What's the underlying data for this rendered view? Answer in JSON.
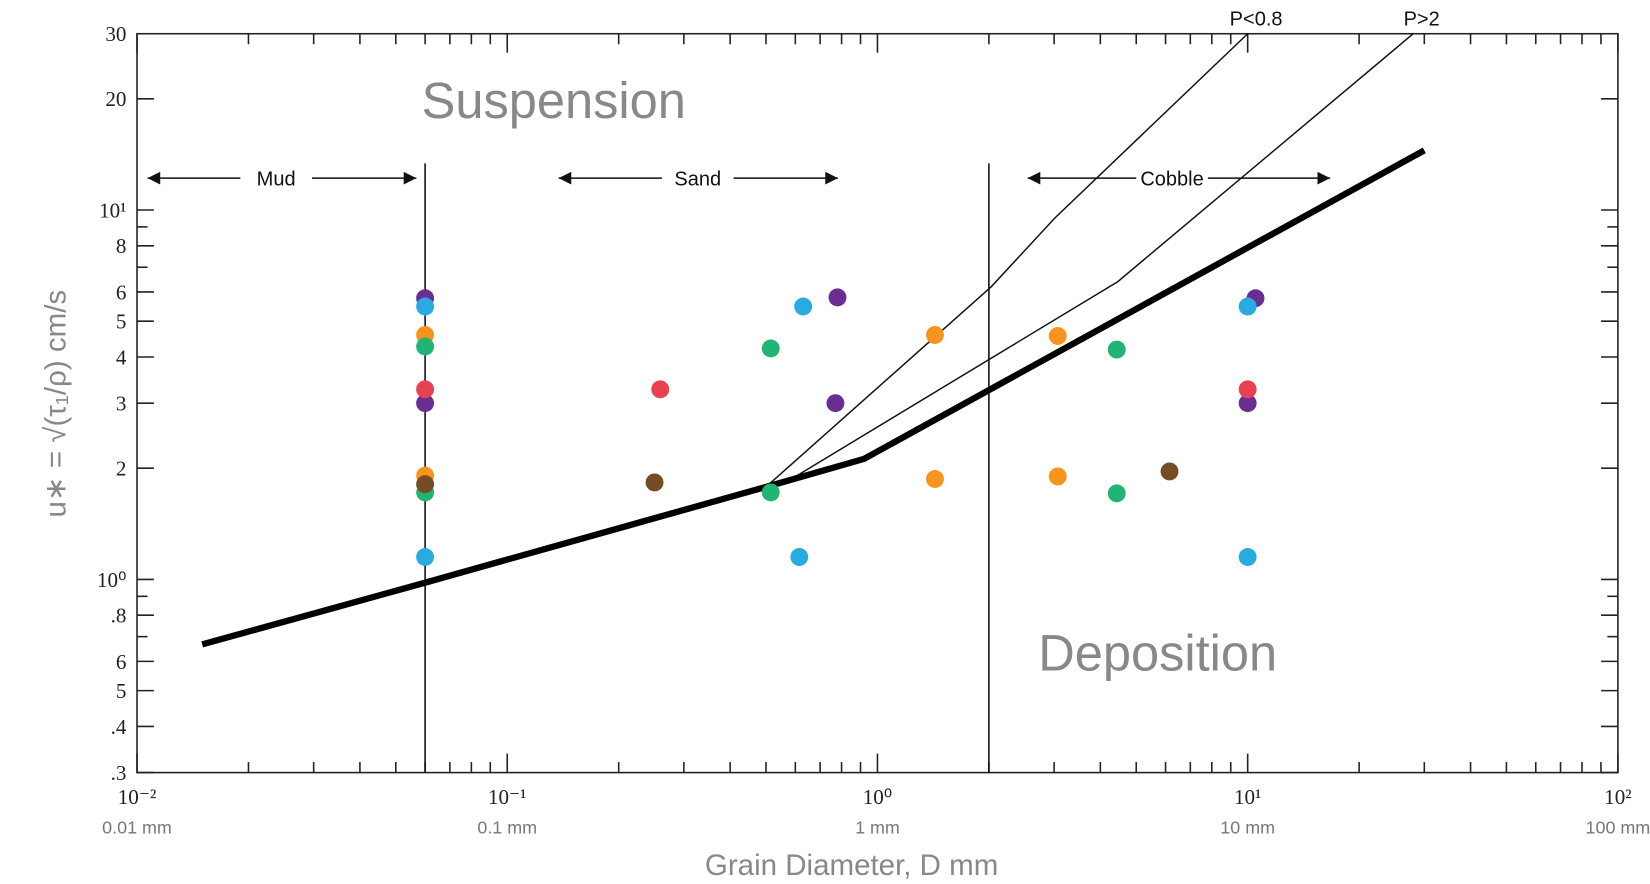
{
  "chart_data": {
    "type": "scatter",
    "xlabel": "Grain Diameter, D mm",
    "ylabel": "u∗ = √(τ₁/ρ)    cm/s",
    "xlog": true,
    "ylog": true,
    "xlim": [
      0.01,
      100
    ],
    "ylim": [
      0.3,
      30
    ],
    "xticks": [
      {
        "value": 0.01,
        "label": "10⁻²"
      },
      {
        "value": 0.1,
        "label": "10⁻¹"
      },
      {
        "value": 1,
        "label": "10⁰"
      },
      {
        "value": 10,
        "label": "10¹"
      },
      {
        "value": 100,
        "label": "10²"
      }
    ],
    "xtick_sublabels": [
      "0.01 mm",
      "0.1 mm",
      "1 mm",
      "10 mm",
      "100 mm"
    ],
    "xminorticks": [
      0.02,
      0.03,
      0.04,
      0.05,
      0.06,
      0.07,
      0.08,
      0.09,
      0.2,
      0.3,
      0.4,
      0.5,
      0.6,
      0.7,
      0.8,
      0.9,
      2,
      3,
      4,
      5,
      6,
      7,
      8,
      9,
      20,
      30,
      40,
      50,
      60,
      70,
      80,
      90
    ],
    "yticks": [
      {
        "value": 0.3,
        "label": ".3"
      },
      {
        "value": 0.4,
        "label": ".4"
      },
      {
        "value": 0.5,
        "label": "5"
      },
      {
        "value": 0.6,
        "label": "6"
      },
      {
        "value": 0.8,
        "label": ".8"
      },
      {
        "value": 1,
        "label": "10⁰"
      },
      2,
      3,
      4,
      5,
      6,
      8,
      {
        "value": 10,
        "label": "10¹"
      },
      20,
      30
    ],
    "yminorticks": [
      0.7,
      0.9,
      7,
      9
    ],
    "regions": [
      "Suspension",
      "Deposition"
    ],
    "ranges": [
      "Mud",
      "Sand",
      "Cobble"
    ],
    "dividers": [
      0.06,
      2
    ],
    "threshold": {
      "x": [
        0.015,
        0.06,
        0.5,
        0.92,
        30
      ],
      "y": [
        0.667,
        0.98,
        1.78,
        2.12,
        14.5
      ]
    },
    "curves": [
      {
        "label": "P<0.8",
        "x": [
          0.5,
          2.03,
          3.01,
          10
        ],
        "y": [
          1.78,
          6.2,
          9.5,
          30
        ]
      },
      {
        "label": "P>2",
        "x": [
          0.55,
          4.46,
          28
        ],
        "y": [
          1.8,
          6.4,
          30
        ]
      }
    ],
    "series": [
      {
        "color": "#6a2d91",
        "x": [
          0.06,
          0.06,
          0.78,
          0.77,
          10.5,
          10
        ],
        "values": [
          5.77,
          3.0,
          5.8,
          3.0,
          5.77,
          3.0
        ]
      },
      {
        "color": "#29abe2",
        "x": [
          0.06,
          0.06,
          0.63,
          0.615,
          10,
          10
        ],
        "values": [
          5.48,
          1.15,
          5.48,
          1.15,
          5.48,
          1.15
        ]
      },
      {
        "color": "#f7941d",
        "x": [
          0.06,
          0.06,
          1.43,
          1.43,
          3.07,
          3.07
        ],
        "values": [
          4.59,
          1.91,
          4.59,
          1.87,
          4.56,
          1.9
        ]
      },
      {
        "color": "#21b573",
        "x": [
          0.06,
          0.06,
          0.515,
          0.515,
          4.43,
          4.43
        ],
        "values": [
          4.27,
          1.72,
          4.22,
          1.72,
          4.19,
          1.71
        ]
      },
      {
        "color": "#e8414f",
        "x": [
          0.06,
          0.259,
          10
        ],
        "values": [
          3.27,
          3.27,
          3.27
        ]
      },
      {
        "color": "#754c24",
        "x": [
          0.06,
          0.25,
          6.15
        ],
        "values": [
          1.81,
          1.83,
          1.96
        ]
      }
    ]
  }
}
